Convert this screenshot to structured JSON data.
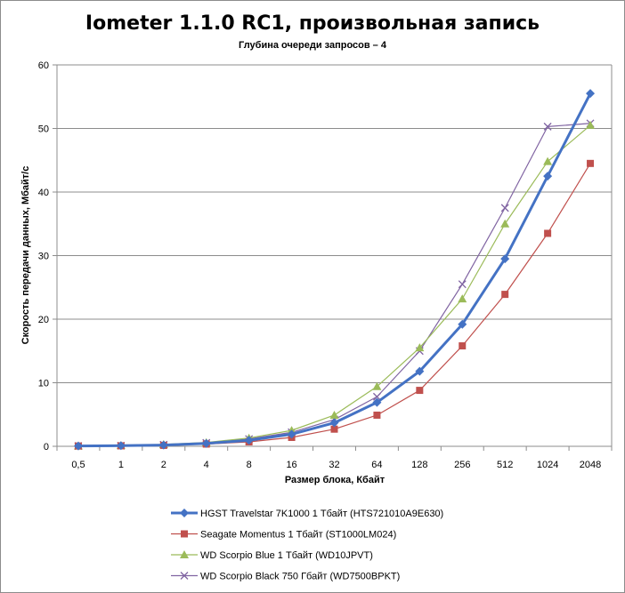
{
  "chart_data": {
    "type": "line",
    "title": "Iometer 1.1.0 RC1, произвольная запись",
    "subtitle": "Глубина очереди запросов – 4",
    "xlabel": "Размер блока, Кбайт",
    "ylabel": "Скорость передачи данных, Мбайт/с",
    "categories": [
      "0,5",
      "1",
      "2",
      "4",
      "8",
      "16",
      "32",
      "64",
      "128",
      "256",
      "512",
      "1024",
      "2048"
    ],
    "ylim": [
      0,
      60
    ],
    "yticks": [
      0,
      10,
      20,
      30,
      40,
      50,
      60
    ],
    "grid": true,
    "legend_position": "bottom",
    "series": [
      {
        "name": "HGST Travelstar 7K1000 1 Тбайт (HTS721010A9E630)",
        "color": "#4472c4",
        "marker": "diamond",
        "values": [
          0.05,
          0.1,
          0.2,
          0.45,
          0.95,
          1.9,
          3.7,
          6.9,
          11.8,
          19.2,
          29.5,
          42.5,
          55.5
        ]
      },
      {
        "name": "Seagate Momentus 1 Тбайт  (ST1000LM024)",
        "color": "#c0504d",
        "marker": "square",
        "values": [
          0.05,
          0.08,
          0.15,
          0.35,
          0.7,
          1.4,
          2.7,
          4.9,
          8.8,
          15.8,
          23.9,
          33.5,
          44.5
        ]
      },
      {
        "name": "WD Scorpio Blue 1 Тбайт (WD10JPVT)",
        "color": "#9bbb59",
        "marker": "triangle",
        "values": [
          0.05,
          0.12,
          0.3,
          0.6,
          1.3,
          2.5,
          4.9,
          9.4,
          15.5,
          23.2,
          35.0,
          44.8,
          50.5
        ]
      },
      {
        "name": "WD Scorpio Black 750 Гбайт (WD7500BPKT)",
        "color": "#8064a2",
        "marker": "x",
        "values": [
          0.05,
          0.1,
          0.25,
          0.55,
          1.15,
          2.2,
          4.2,
          7.8,
          15.0,
          25.5,
          37.5,
          50.3,
          50.8
        ]
      }
    ]
  }
}
